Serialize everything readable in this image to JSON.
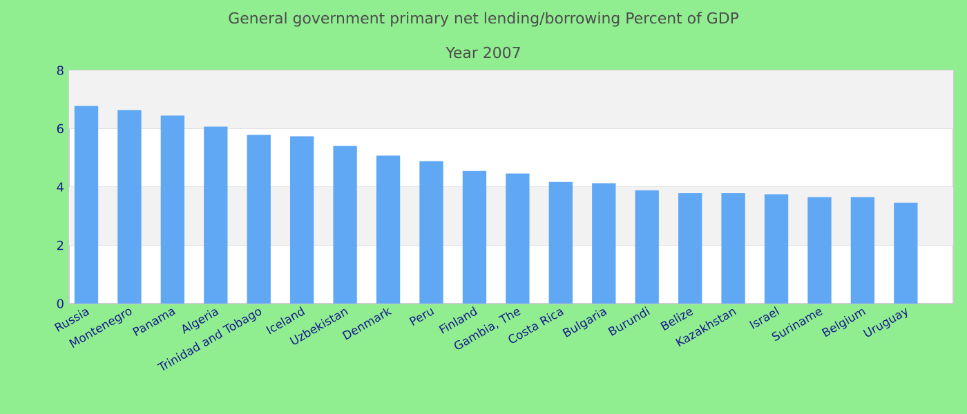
{
  "chart_data": {
    "type": "bar",
    "title": "General government primary net lending/borrowing  Percent of GDP",
    "subtitle": "Year 2007",
    "categories": [
      "Russia",
      "Montenegro",
      "Panama",
      "Algeria",
      "Trinidad and Tobago",
      "Iceland",
      "Uzbekistan",
      "Denmark",
      "Peru",
      "Finland",
      "Gambia, The",
      "Costa Rica",
      "Bulgaria",
      "Burundi",
      "Belize",
      "Kazakhstan",
      "Israel",
      "Suriname",
      "Belgium",
      "Uruguay"
    ],
    "values": [
      6.78,
      6.64,
      6.45,
      6.07,
      5.79,
      5.74,
      5.41,
      5.08,
      4.89,
      4.55,
      4.46,
      4.17,
      4.13,
      3.89,
      3.79,
      3.79,
      3.75,
      3.65,
      3.65,
      3.46
    ],
    "color": "#60a8f4",
    "ylim": [
      0,
      8
    ],
    "yticks": [
      0,
      2,
      4,
      6,
      8
    ],
    "grid": "y"
  }
}
